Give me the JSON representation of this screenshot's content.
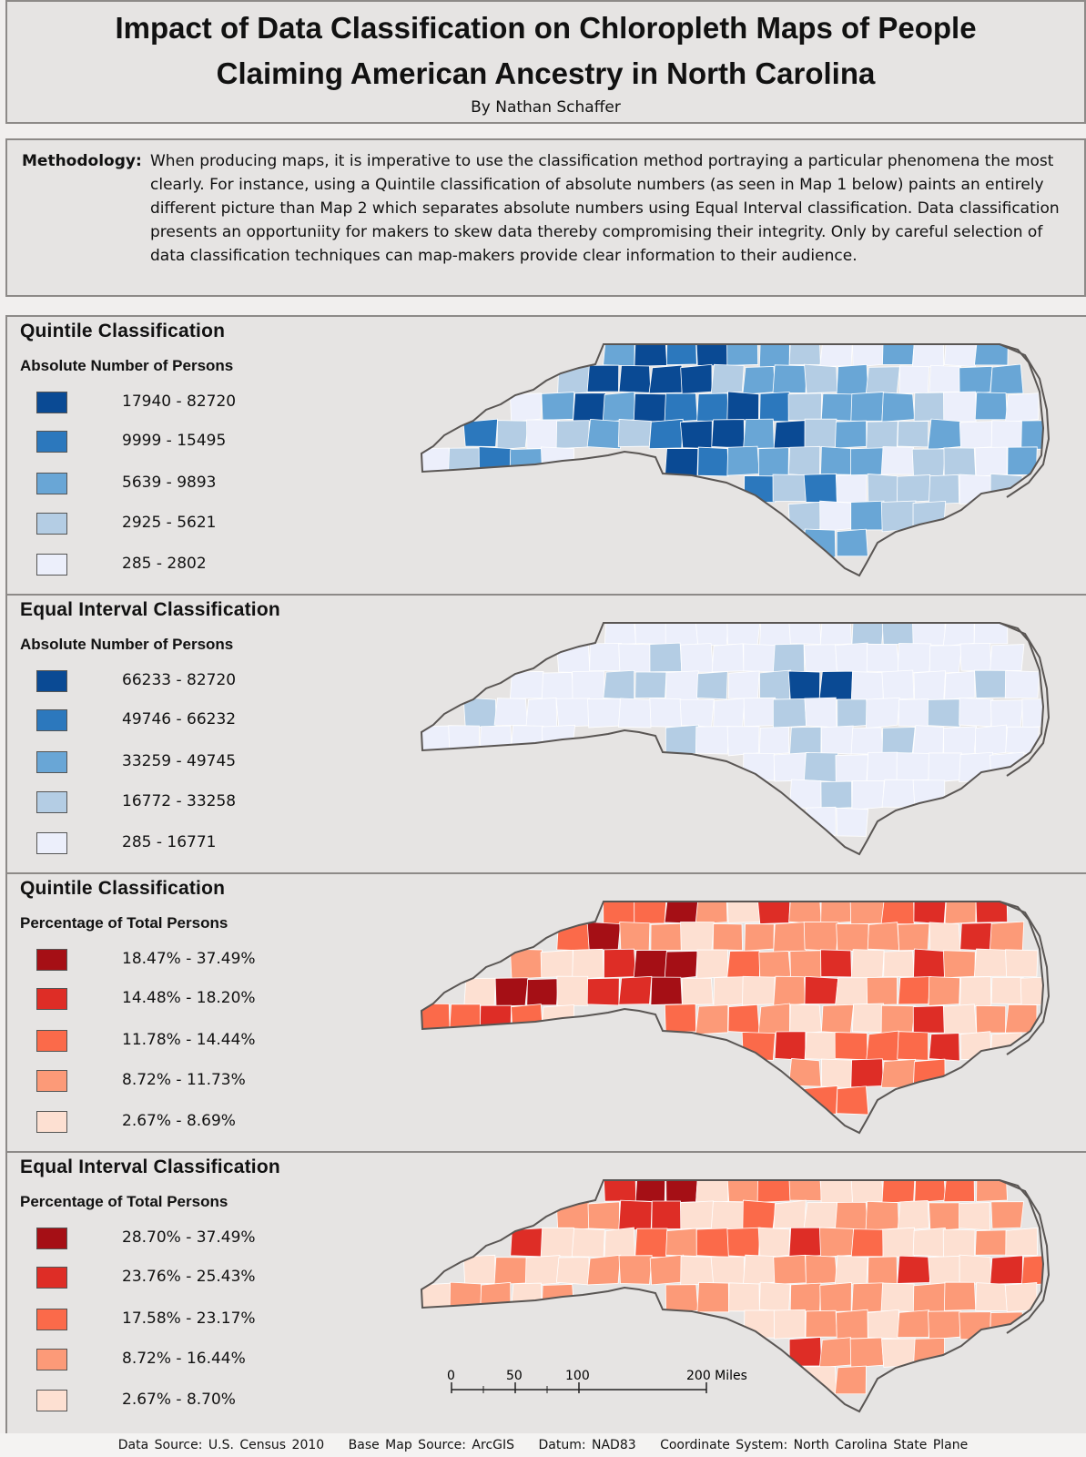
{
  "header": {
    "title_line1": "Impact of Data Classification on Chloropleth Maps of People",
    "title_line2": "Claiming American Ancestry in North Carolina",
    "author": "By Nathan Schaffer"
  },
  "methodology": {
    "label": "Methodology:",
    "text": "When producing maps, it is imperative to use the classification method portraying a particular phenomena the most clearly. For instance, using a Quintile classification of absolute numbers (as seen in Map 1 below) paints an entirely different picture than Map 2 which separates absolute numbers using Equal Interval classification. Data classification presents an opportuniity for makers to skew data thereby compromising their integrity. Only by careful selection of data classification techniques can map-makers provide clear information to their audience."
  },
  "panels": [
    {
      "title": "Quintile Classification",
      "subtitle": "Absolute Number of Persons",
      "legend": [
        {
          "label": "17940 - 82720",
          "color": "#0a4a94"
        },
        {
          "label": "9999 - 15495",
          "color": "#2c78bd"
        },
        {
          "label": "5639 - 9893",
          "color": "#69a6d6"
        },
        {
          "label": "2925 - 5621",
          "color": "#b4cde4"
        },
        {
          "label": "285 - 2802",
          "color": "#eceffb"
        }
      ]
    },
    {
      "title": "Equal Interval Classification",
      "subtitle": "Absolute Number of Persons",
      "legend": [
        {
          "label": "66233 - 82720",
          "color": "#0a4a94"
        },
        {
          "label": "49746 - 66232",
          "color": "#2c78bd"
        },
        {
          "label": "33259 - 49745",
          "color": "#69a6d6"
        },
        {
          "label": "16772 - 33258",
          "color": "#b4cde4"
        },
        {
          "label": "285 - 16771",
          "color": "#eceffb"
        }
      ]
    },
    {
      "title": "Quintile Classification",
      "subtitle": "Percentage of Total Persons",
      "legend": [
        {
          "label": "18.47% - 37.49%",
          "color": "#a50f15"
        },
        {
          "label": "14.48% - 18.20%",
          "color": "#de2d26"
        },
        {
          "label": "11.78% - 14.44%",
          "color": "#fb6a4a"
        },
        {
          "label": "8.72% - 11.73%",
          "color": "#fc9a78"
        },
        {
          "label": "2.67% - 8.69%",
          "color": "#fde0d2"
        }
      ]
    },
    {
      "title": "Equal Interval Classification",
      "subtitle": "Percentage of Total Persons",
      "legend": [
        {
          "label": "28.70% - 37.49%",
          "color": "#a50f15"
        },
        {
          "label": "23.76% - 25.43%",
          "color": "#de2d26"
        },
        {
          "label": "17.58% - 23.17%",
          "color": "#fb6a4a"
        },
        {
          "label": "8.72% - 16.44%",
          "color": "#fc9a78"
        },
        {
          "label": "2.67% - 8.70%",
          "color": "#fde0d2"
        }
      ]
    }
  ],
  "scalebar": {
    "ticks": [
      "0",
      "50",
      "100",
      "200 Miles"
    ]
  },
  "footer": {
    "data_source": "Data Source: U.S. Census 2010",
    "base_map": "Base Map Source: ArcGIS",
    "datum": "Datum: NAD83",
    "coordinate_system": "Coordinate System: North Carolina State Plane"
  }
}
